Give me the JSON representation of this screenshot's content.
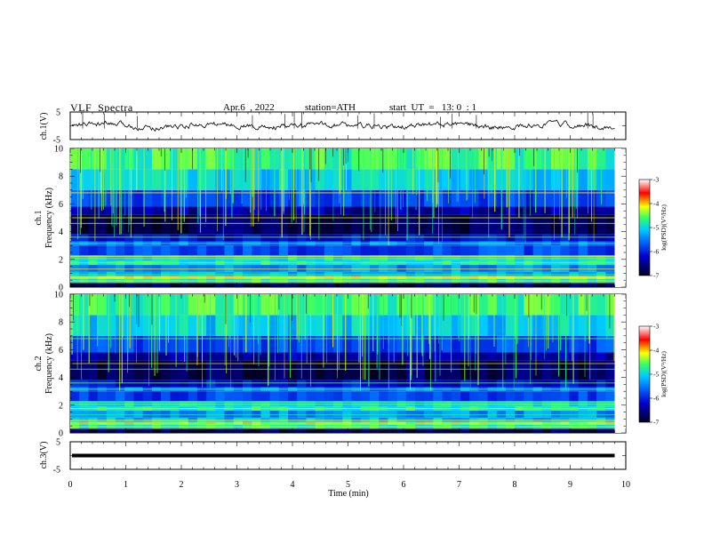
{
  "header": {
    "title": "VLF  Spectra",
    "date": "Apr.6  , 2022",
    "station": "station=ATH",
    "start_ut": "start  UT  =   13: 0  : 1"
  },
  "chart_data": {
    "type": "heatmap",
    "x": {
      "label": "Time  (min)",
      "range": [
        0,
        10
      ],
      "ticks": [
        "0",
        "1",
        "2",
        "3",
        "4",
        "5",
        "6",
        "7",
        "8",
        "9",
        "10"
      ],
      "data_end": 9.8
    },
    "panels": [
      {
        "name": "ch.1(V)",
        "kind": "waveform",
        "yrange": [
          -5,
          5
        ],
        "ytick_labels": [
          "5",
          "-5"
        ],
        "baseline": 0
      },
      {
        "name": "ch.1",
        "ylabel": "Frequency  (kHz)",
        "kind": "spectrogram",
        "yrange": [
          0,
          10
        ],
        "ytick_labels": [
          "0",
          "2",
          "4",
          "6",
          "8",
          "10"
        ],
        "colorbar": {
          "label": "log(PSD)(V²/Hz)",
          "range": [
            -7,
            -3
          ],
          "ticks": [
            "-3",
            "-4",
            "-5",
            "-6",
            "-7"
          ]
        }
      },
      {
        "name": "ch.2",
        "ylabel": "Frequency  (kHz)",
        "kind": "spectrogram",
        "yrange": [
          0,
          10
        ],
        "ytick_labels": [
          "0",
          "2",
          "4",
          "6",
          "8",
          "10"
        ],
        "colorbar": {
          "label": "log(PSD)(V²/Hz)",
          "range": [
            -7,
            -3
          ],
          "ticks": [
            "-3",
            "-4",
            "-5",
            "-6",
            "-7"
          ]
        }
      },
      {
        "name": "ch.3(V)",
        "kind": "waveform",
        "yrange": [
          -5,
          5
        ],
        "ytick_labels": [
          "5",
          "-5"
        ],
        "baseline": 0
      }
    ],
    "colors": {
      "low": "#000033",
      "mid": "#00c8ff",
      "high": "#ff0000",
      "top": "#ffffff"
    }
  }
}
